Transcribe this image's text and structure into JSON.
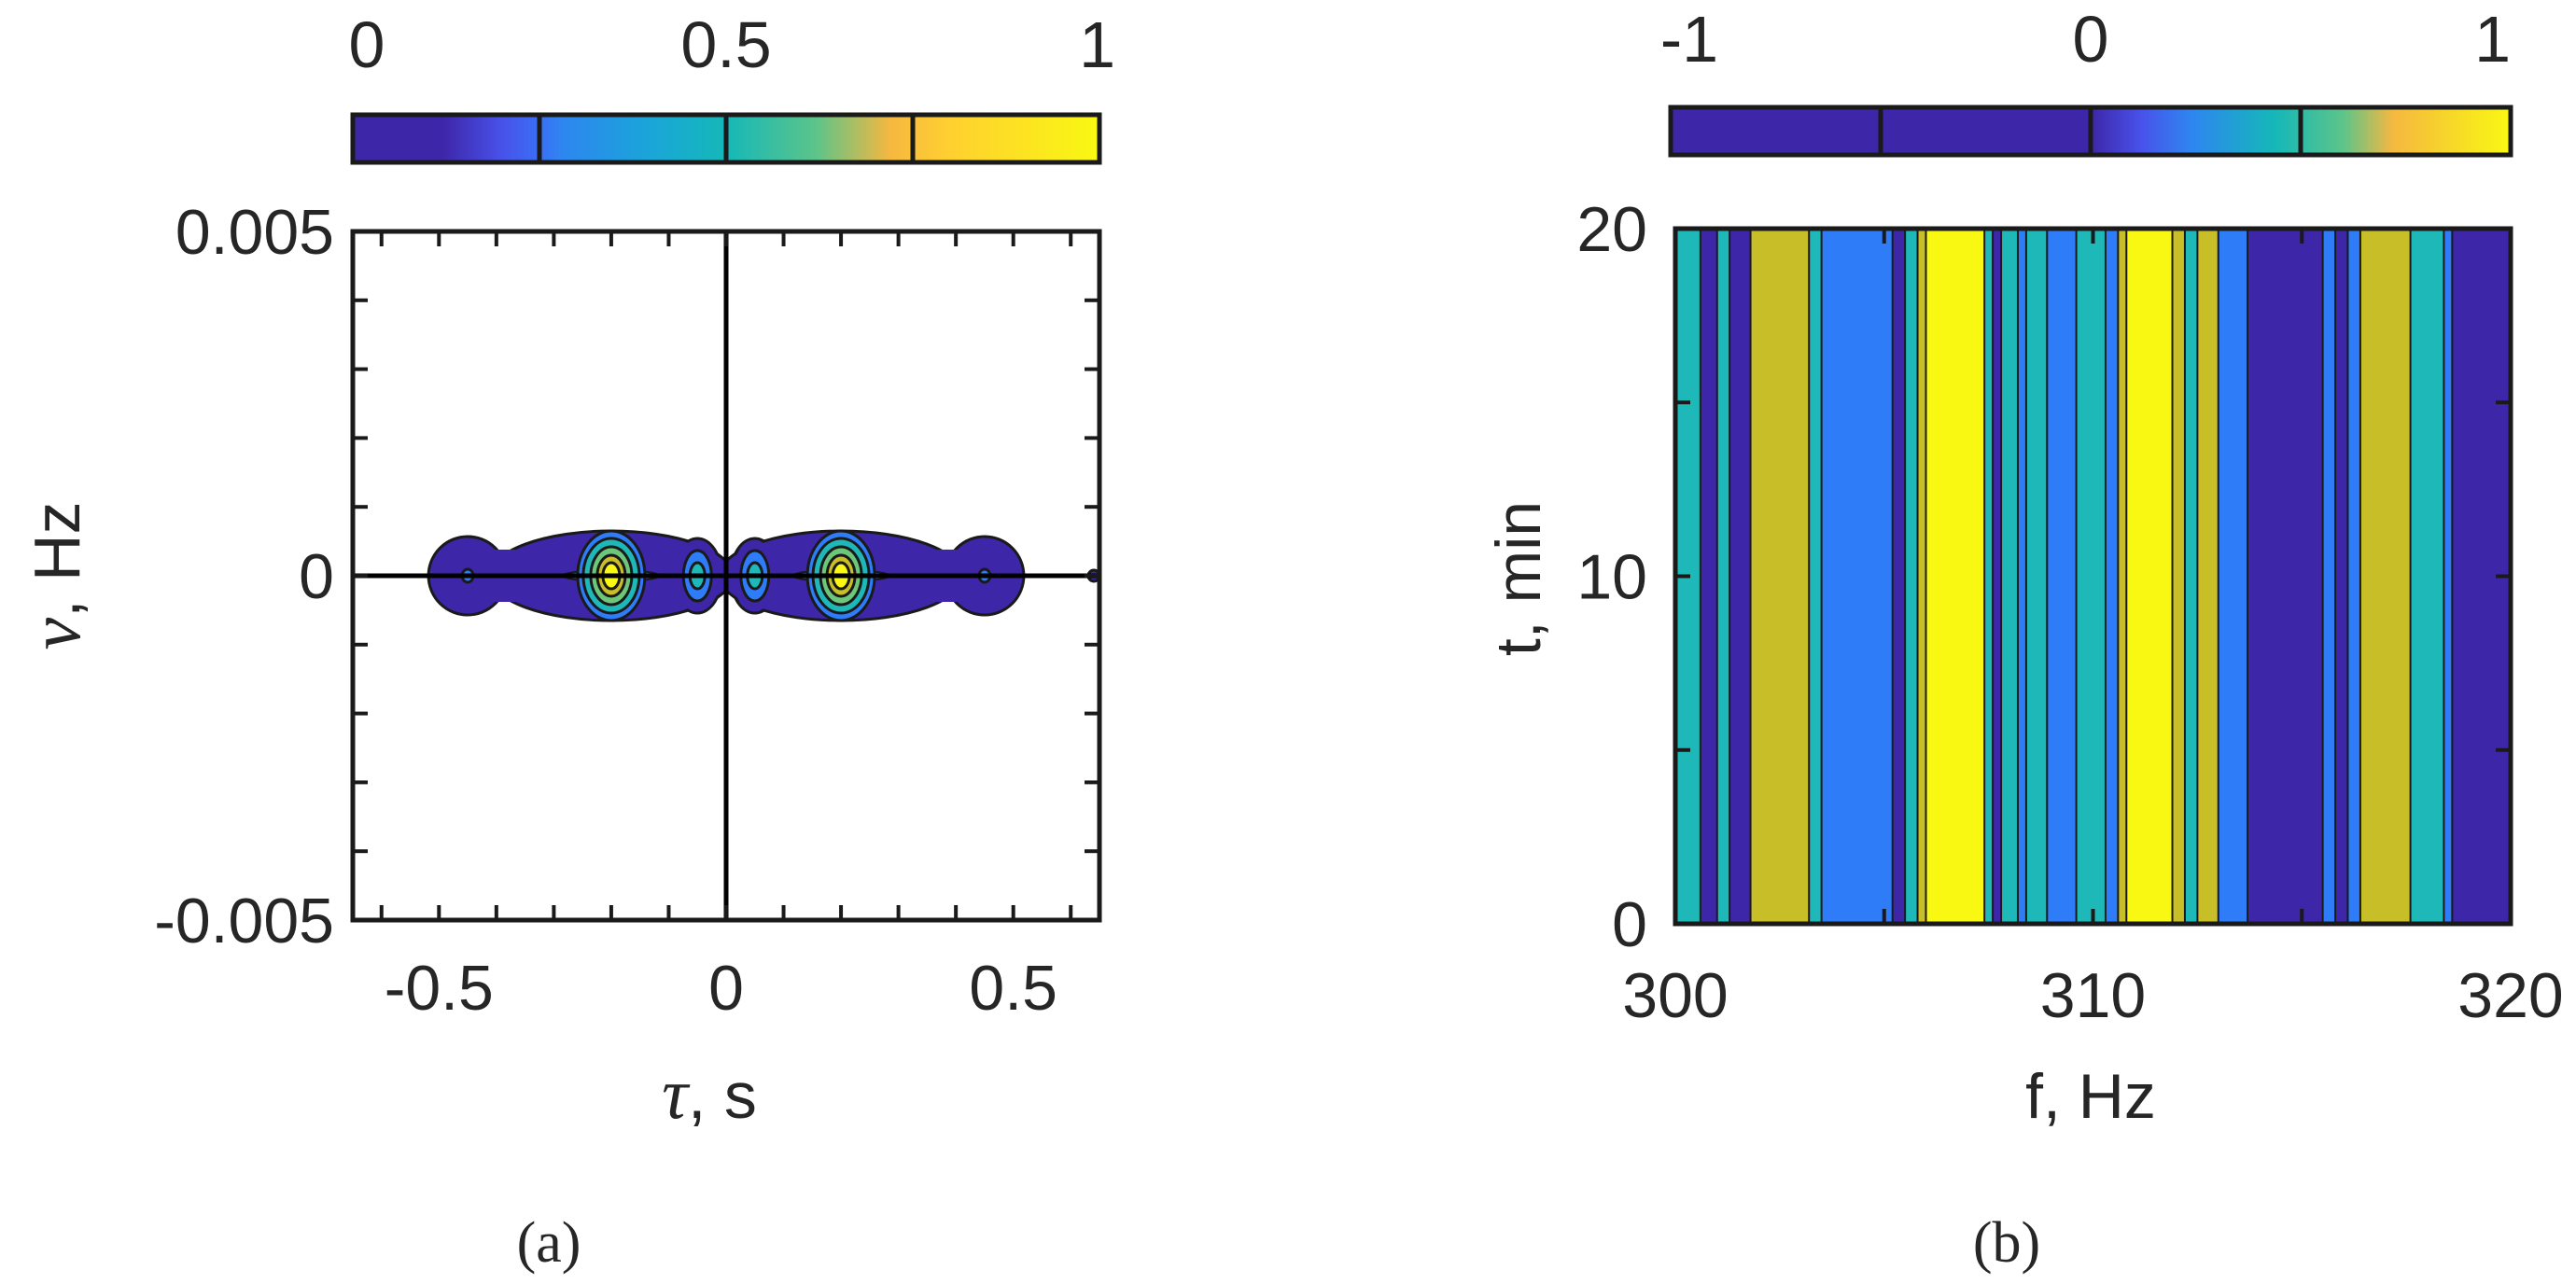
{
  "colors": {
    "c1": "#3E26A8",
    "c2": "#2E7CF7",
    "c3": "#1EB8B8",
    "c4": "#C8BE28",
    "c5": "#F9F812",
    "outline": "#1A1A1A",
    "text": "#262626"
  },
  "panels": [
    {
      "caption": "(a)",
      "colorbar": {
        "ticks": [
          "0",
          "0.5",
          "1"
        ],
        "range": [
          0,
          1
        ],
        "segments": 4
      },
      "ylabel_symbol": "ν",
      "ylabel_unit": ", Hz",
      "xlabel_symbol": "τ",
      "xlabel_unit": ", s"
    },
    {
      "caption": "(b)",
      "colorbar": {
        "ticks": [
          "-1",
          "0",
          "1"
        ],
        "range": [
          -1,
          1
        ],
        "segments": 4
      },
      "ylabel": "t, min",
      "xlabel": "f, Hz"
    }
  ],
  "chart_data": [
    {
      "type": "contour",
      "xlabel": "τ, s",
      "ylabel": "ν, Hz",
      "xlim": [
        -0.65,
        0.65
      ],
      "ylim": [
        -0.005,
        0.005
      ],
      "xticks": [
        -0.5,
        0,
        0.5
      ],
      "xtick_labels": [
        "-0.5",
        "0",
        "0.5"
      ],
      "yticks": [
        -0.005,
        0,
        0.005
      ],
      "ytick_labels": [
        "-0.005",
        "0",
        "0.005"
      ],
      "colorbar": {
        "range": [
          0,
          1
        ],
        "ticks": [
          "0",
          "0.5",
          "1"
        ]
      },
      "peaks": [
        {
          "tau": -0.45,
          "nu": 0,
          "amplitude": 0.12
        },
        {
          "tau": -0.2,
          "nu": 0,
          "amplitude": 1.0
        },
        {
          "tau": -0.05,
          "nu": 0,
          "amplitude": 0.35
        },
        {
          "tau": 0.05,
          "nu": 0,
          "amplitude": 0.35
        },
        {
          "tau": 0.2,
          "nu": 0,
          "amplitude": 1.0
        },
        {
          "tau": 0.45,
          "nu": 0,
          "amplitude": 0.12
        }
      ],
      "grid": false
    },
    {
      "type": "heatmap",
      "xlabel": "f, Hz",
      "ylabel": "t, min",
      "xlim": [
        300,
        320
      ],
      "ylim": [
        0,
        20
      ],
      "xticks": [
        300,
        310,
        320
      ],
      "xtick_labels": [
        "300",
        "310",
        "320"
      ],
      "yticks": [
        0,
        10,
        20
      ],
      "ytick_labels": [
        "0",
        "10",
        "20"
      ],
      "colorbar": {
        "range": [
          -1,
          1
        ],
        "ticks": [
          "-1",
          "0",
          "1"
        ]
      },
      "bands": [
        {
          "f_start": 300.0,
          "f_end": 300.6,
          "level": 3
        },
        {
          "f_start": 300.6,
          "f_end": 301.0,
          "level": 1
        },
        {
          "f_start": 301.0,
          "f_end": 301.3,
          "level": 3
        },
        {
          "f_start": 301.3,
          "f_end": 301.8,
          "level": 1
        },
        {
          "f_start": 301.8,
          "f_end": 303.2,
          "level": 4
        },
        {
          "f_start": 303.2,
          "f_end": 303.5,
          "level": 3
        },
        {
          "f_start": 303.5,
          "f_end": 305.2,
          "level": 2
        },
        {
          "f_start": 305.2,
          "f_end": 305.5,
          "level": 1
        },
        {
          "f_start": 305.5,
          "f_end": 305.8,
          "level": 3
        },
        {
          "f_start": 305.8,
          "f_end": 306.0,
          "level": 4
        },
        {
          "f_start": 306.0,
          "f_end": 307.4,
          "level": 5
        },
        {
          "f_start": 307.4,
          "f_end": 307.6,
          "level": 3
        },
        {
          "f_start": 307.6,
          "f_end": 307.8,
          "level": 1
        },
        {
          "f_start": 307.8,
          "f_end": 308.2,
          "level": 3
        },
        {
          "f_start": 308.2,
          "f_end": 308.4,
          "level": 2
        },
        {
          "f_start": 308.4,
          "f_end": 308.9,
          "level": 3
        },
        {
          "f_start": 308.9,
          "f_end": 309.6,
          "level": 2
        },
        {
          "f_start": 309.6,
          "f_end": 310.3,
          "level": 3
        },
        {
          "f_start": 310.3,
          "f_end": 310.6,
          "level": 2
        },
        {
          "f_start": 310.6,
          "f_end": 310.8,
          "level": 4
        },
        {
          "f_start": 310.8,
          "f_end": 311.9,
          "level": 5
        },
        {
          "f_start": 311.9,
          "f_end": 312.2,
          "level": 4
        },
        {
          "f_start": 312.2,
          "f_end": 312.5,
          "level": 3
        },
        {
          "f_start": 312.5,
          "f_end": 313.0,
          "level": 4
        },
        {
          "f_start": 313.0,
          "f_end": 313.7,
          "level": 2
        },
        {
          "f_start": 313.7,
          "f_end": 315.5,
          "level": 1
        },
        {
          "f_start": 315.5,
          "f_end": 315.8,
          "level": 2
        },
        {
          "f_start": 315.8,
          "f_end": 316.1,
          "level": 1
        },
        {
          "f_start": 316.1,
          "f_end": 316.4,
          "level": 2
        },
        {
          "f_start": 316.4,
          "f_end": 317.6,
          "level": 4
        },
        {
          "f_start": 317.6,
          "f_end": 318.4,
          "level": 3
        },
        {
          "f_start": 318.4,
          "f_end": 318.6,
          "level": 2
        },
        {
          "f_start": 318.6,
          "f_end": 320.0,
          "level": 1
        }
      ],
      "grid": false
    }
  ]
}
